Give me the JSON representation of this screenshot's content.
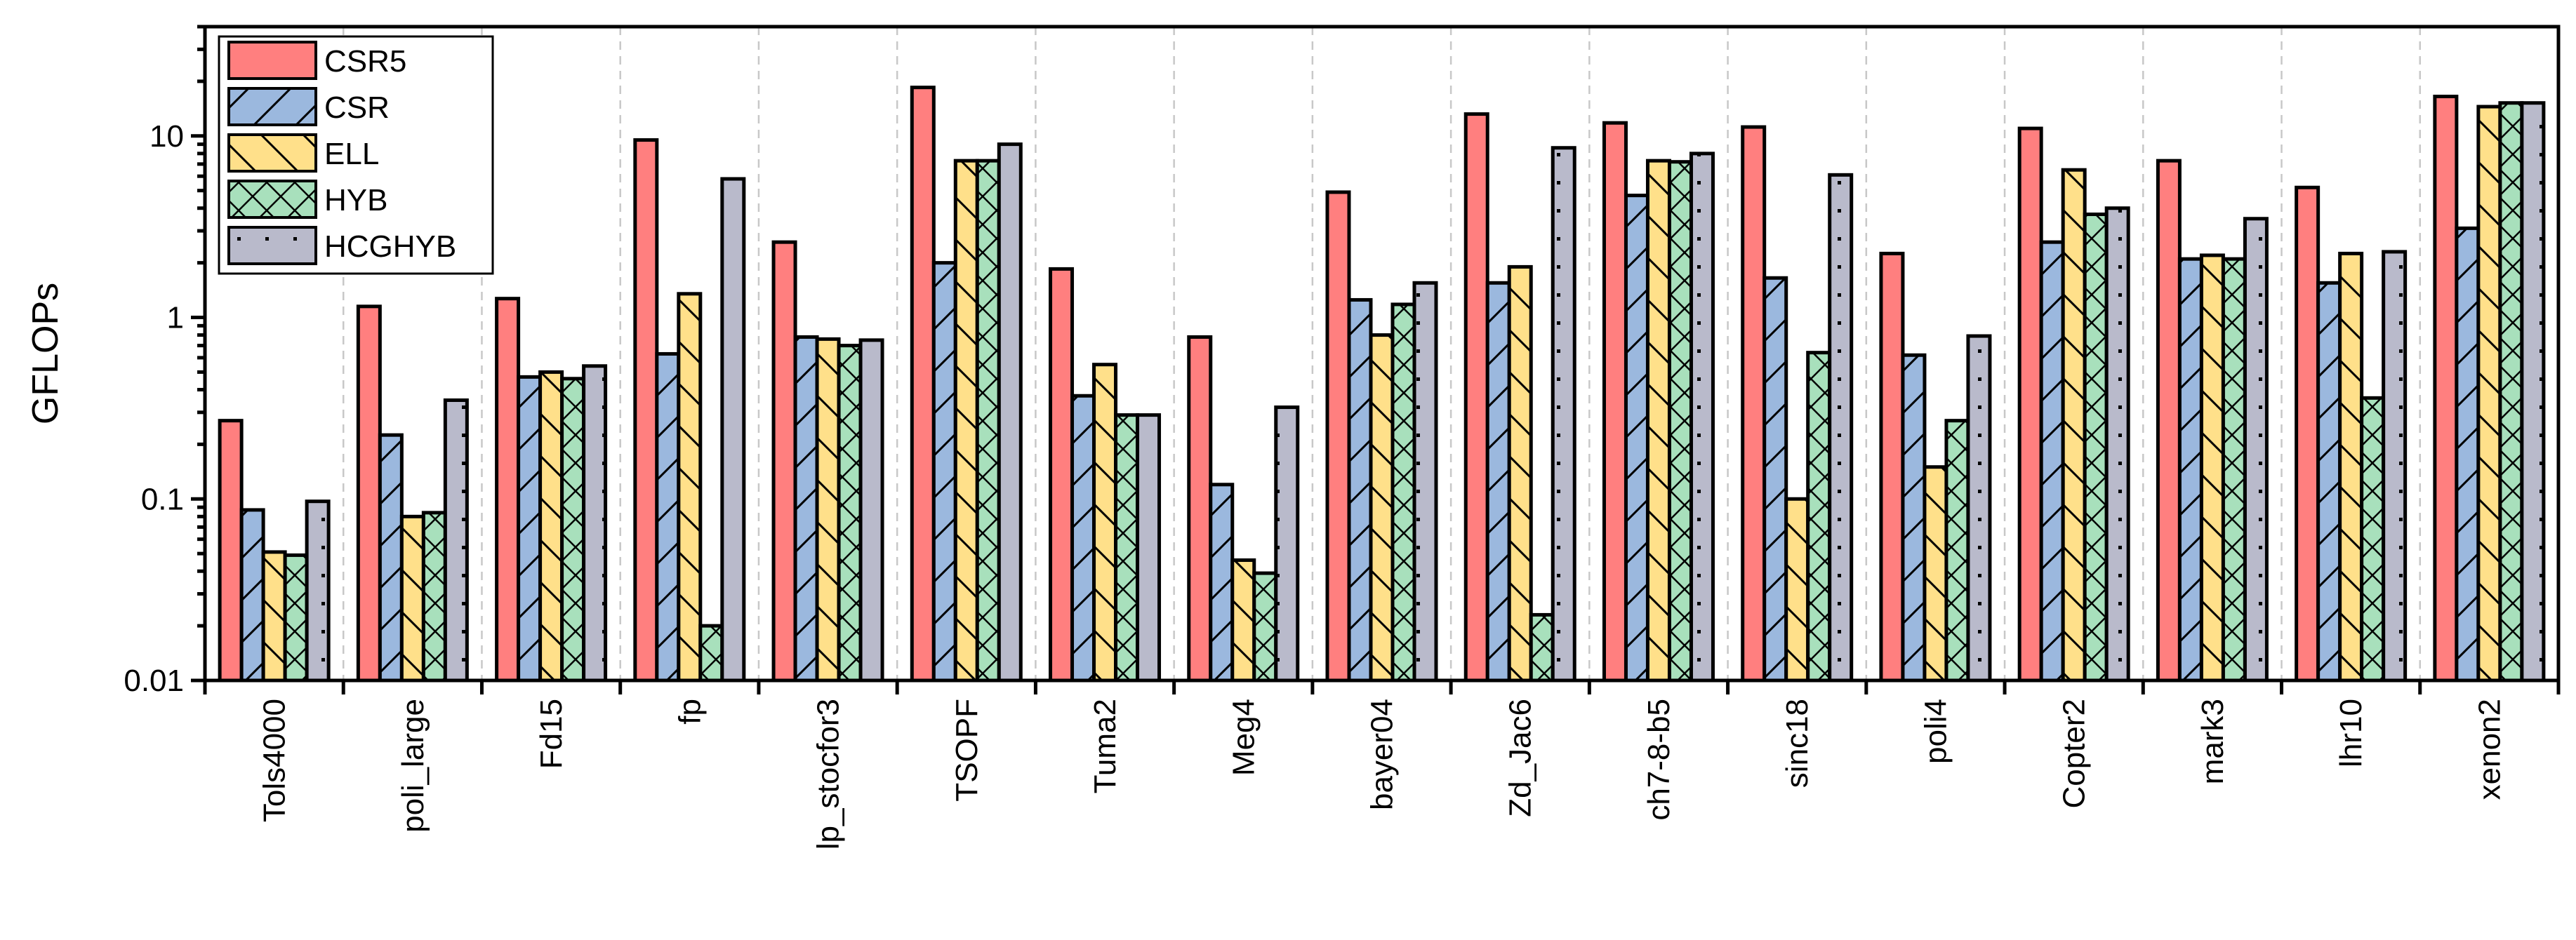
{
  "chart_data": {
    "type": "bar",
    "scale": "log",
    "ylabel": "GFLOPs",
    "xlabel": "",
    "ylim": [
      0.01,
      40
    ],
    "yticks": [
      0.01,
      0.1,
      1,
      10
    ],
    "ytick_labels": [
      "0.01",
      "0.1",
      "1",
      "10"
    ],
    "legend_position": "top-left",
    "grid": "dashed vertical separators between categories",
    "categories": [
      "Tols4000",
      "poli_large",
      "Fd15",
      "fp",
      "lp_stocfor3",
      "TSOPF",
      "Tuma2",
      "Meg4",
      "bayer04",
      "Zd_Jac6",
      "ch7-8-b5",
      "sinc18",
      "poli4",
      "Copter2",
      "mark3",
      "lhr10",
      "xenon2"
    ],
    "series": [
      {
        "name": "CSR5",
        "color": "#FF7F7F",
        "pattern": "solid",
        "values": [
          0.27,
          1.15,
          1.27,
          9.5,
          2.6,
          18.5,
          1.85,
          0.78,
          4.9,
          13.2,
          11.8,
          11.2,
          2.25,
          11.0,
          7.3,
          5.2,
          16.5
        ]
      },
      {
        "name": "CSR",
        "color": "#9BB8DE",
        "pattern": "slash",
        "values": [
          0.087,
          0.225,
          0.47,
          0.63,
          0.78,
          2.0,
          0.37,
          0.12,
          1.25,
          1.55,
          4.7,
          1.65,
          0.62,
          2.6,
          2.1,
          1.55,
          3.1
        ]
      },
      {
        "name": "ELL",
        "color": "#FFE08A",
        "pattern": "backslash",
        "values": [
          0.051,
          0.08,
          0.5,
          1.35,
          0.76,
          7.3,
          0.55,
          0.046,
          0.8,
          1.9,
          7.3,
          0.1,
          0.15,
          6.5,
          2.2,
          2.25,
          14.5
        ]
      },
      {
        "name": "HYB",
        "color": "#A8E0BC",
        "pattern": "cross",
        "values": [
          0.049,
          0.084,
          0.46,
          0.02,
          0.7,
          7.3,
          0.29,
          0.039,
          1.18,
          0.023,
          7.2,
          0.64,
          0.27,
          3.7,
          2.1,
          0.36,
          15.2
        ]
      },
      {
        "name": "HCGHYB",
        "color": "#B9BACB",
        "pattern": "dots",
        "values": [
          0.097,
          0.35,
          0.54,
          5.8,
          0.75,
          9.0,
          0.29,
          0.32,
          1.55,
          8.6,
          8.0,
          6.1,
          0.79,
          4.0,
          3.5,
          2.3,
          15.2
        ]
      }
    ]
  }
}
